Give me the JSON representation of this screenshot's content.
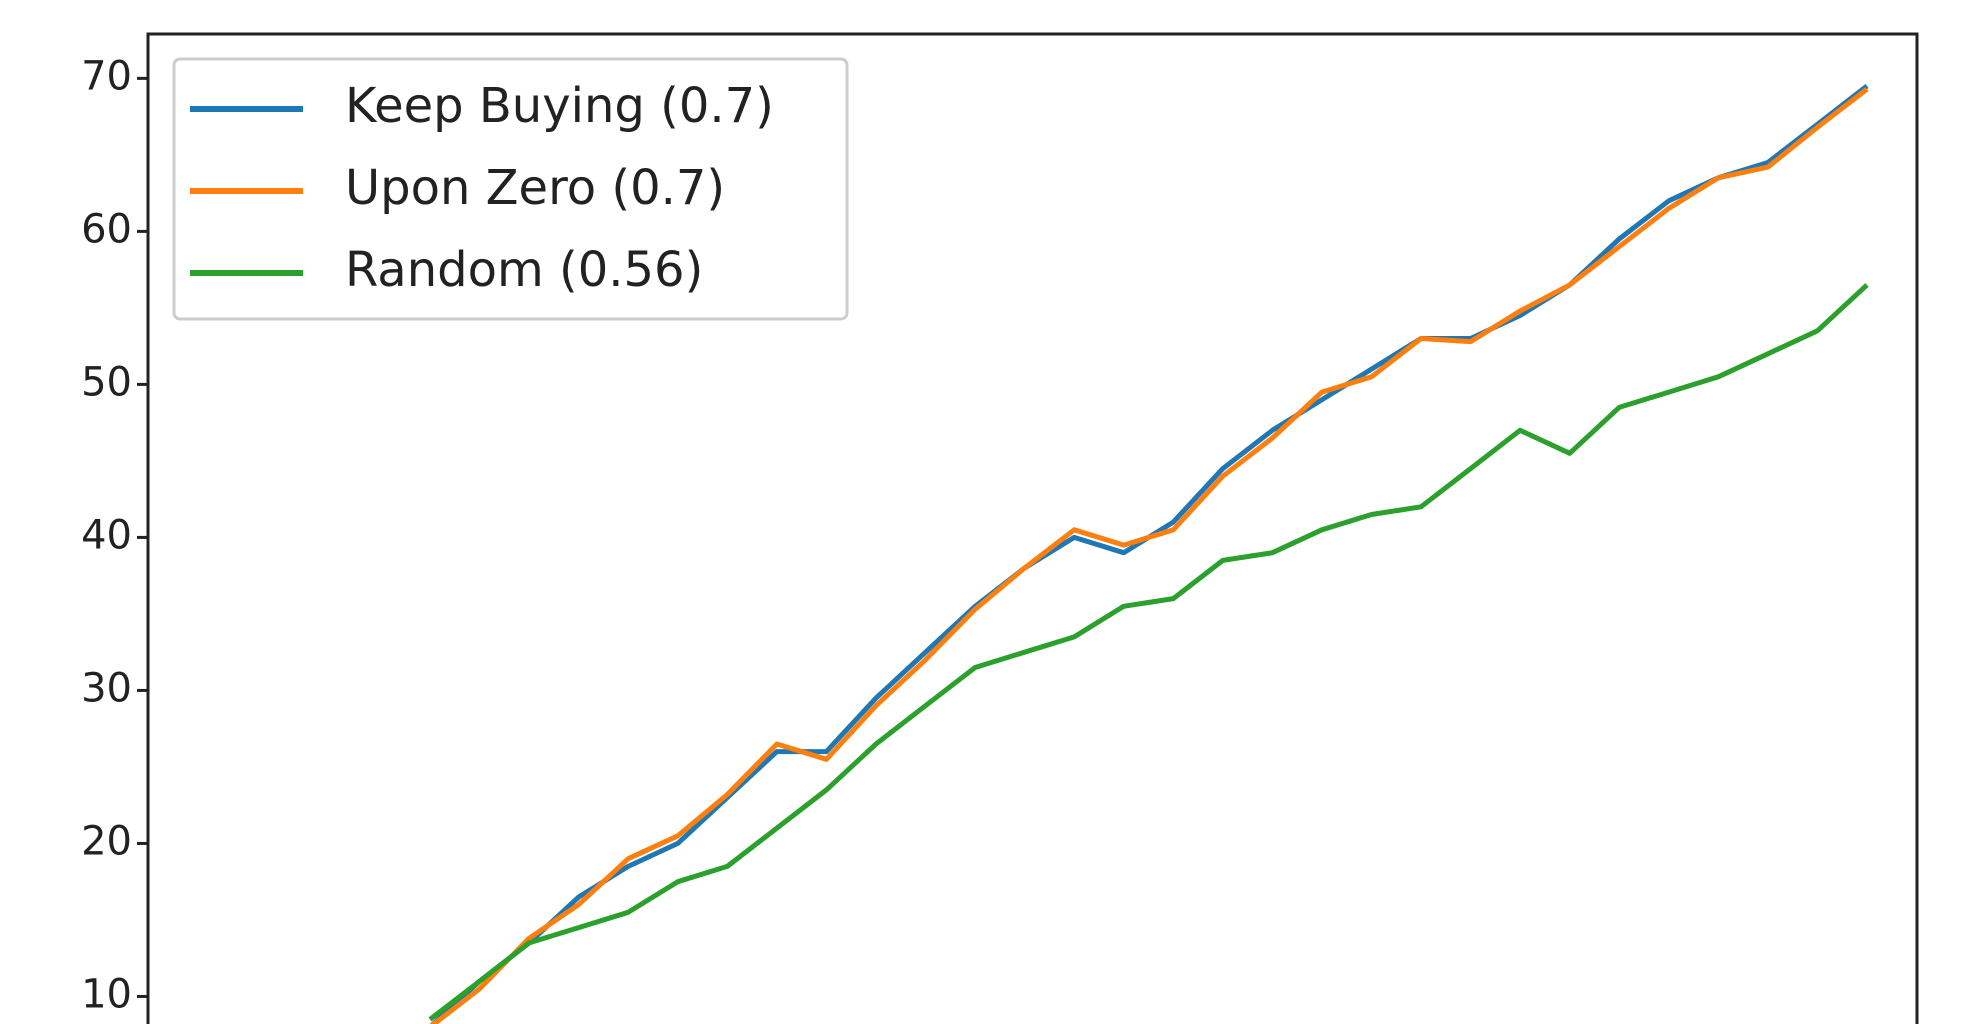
{
  "chart_data": {
    "type": "line",
    "series": [
      {
        "name": "Keep Buying (0.7)",
        "color": "#1f77b4",
        "values": [
          8,
          11,
          13.5,
          16.5,
          18.5,
          20,
          23,
          26,
          26,
          29.5,
          32.5,
          35.5,
          38,
          40,
          39,
          41,
          44.5,
          47,
          49,
          51,
          53,
          53,
          54.5,
          56.5,
          59.5,
          62,
          63.5,
          64.5,
          67,
          69.5
        ]
      },
      {
        "name": "Upon Zero (0.7)",
        "color": "#ff7f0e",
        "values": [
          8,
          10.5,
          13.8,
          16,
          19,
          20.5,
          23.2,
          26.5,
          25.5,
          29,
          32,
          35.3,
          38,
          40.5,
          39.5,
          40.5,
          44,
          46.5,
          49.5,
          50.5,
          53,
          52.8,
          54.8,
          56.5,
          59,
          61.5,
          63.5,
          64.2,
          66.8,
          69.3
        ]
      },
      {
        "name": "Random (0.56)",
        "color": "#2ca02c",
        "values": [
          8.5,
          11,
          13.5,
          14.5,
          15.5,
          17.5,
          18.5,
          21,
          23.5,
          26.5,
          29,
          31.5,
          32.5,
          33.5,
          35.5,
          36,
          38.5,
          39,
          40.5,
          41.5,
          42,
          44.5,
          47,
          45.5,
          48.5,
          49.5,
          50.5,
          52,
          53.5,
          56.5
        ]
      }
    ],
    "ylim": [
      8.2,
      72.9
    ],
    "yticks": [
      10,
      20,
      30,
      40,
      50,
      60,
      70
    ],
    "legend": "upper left"
  }
}
